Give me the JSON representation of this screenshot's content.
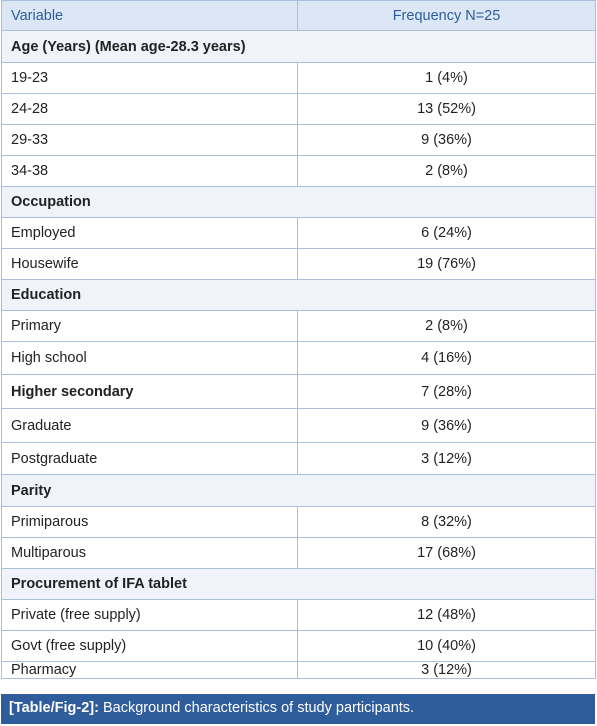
{
  "header": {
    "variable": "Variable",
    "frequency": "Frequency N=25"
  },
  "rows": [
    {
      "type": "section",
      "label": "Age (Years) (Mean age-28.3 years)"
    },
    {
      "type": "data",
      "label": "19-23",
      "value": "1 (4%)"
    },
    {
      "type": "data",
      "label": "24-28",
      "value": "13 (52%)"
    },
    {
      "type": "data",
      "label": "29-33",
      "value": "9 (36%)"
    },
    {
      "type": "data",
      "label": "34-38",
      "value": "2 (8%)"
    },
    {
      "type": "section",
      "label": "Occupation"
    },
    {
      "type": "data",
      "label": "Employed",
      "value": "6 (24%)"
    },
    {
      "type": "data",
      "label": "Housewife",
      "value": "19 (76%)"
    },
    {
      "type": "section",
      "label": "Education"
    },
    {
      "type": "data",
      "label": "Primary",
      "value": "2 (8%)"
    },
    {
      "type": "data",
      "label": "High school",
      "value": "4 (16%)"
    },
    {
      "type": "data",
      "label": "Higher secondary",
      "value": "7 (28%)",
      "bold": true
    },
    {
      "type": "data",
      "label": "Graduate",
      "value": "9 (36%)"
    },
    {
      "type": "data",
      "label": "Postgraduate",
      "value": "3 (12%)"
    },
    {
      "type": "section",
      "label": "Parity"
    },
    {
      "type": "data",
      "label": "Primiparous",
      "value": "8 (32%)"
    },
    {
      "type": "data",
      "label": "Multiparous",
      "value": "17 (68%)"
    },
    {
      "type": "section",
      "label": "Procurement of IFA tablet"
    },
    {
      "type": "data",
      "label": "Private (free supply)",
      "value": "12 (48%)"
    },
    {
      "type": "data",
      "label": "Govt (free supply)",
      "value": "10 (40%)"
    },
    {
      "type": "data",
      "label": "Pharmacy",
      "value": "3 (12%)"
    }
  ],
  "caption": {
    "ref": "[Table/Fig-2]:",
    "text": " Background characteristics of study participants."
  }
}
